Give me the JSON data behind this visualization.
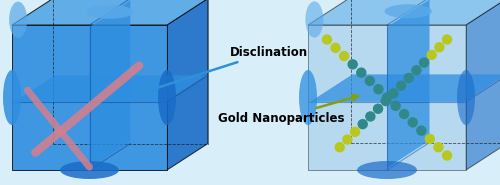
{
  "figsize": [
    5.0,
    1.85
  ],
  "dpi": 100,
  "bg_color": "#d8eef8",
  "blue_dark": "#1050a0",
  "blue_mid": "#1a6cc8",
  "blue_bright": "#2e8ee0",
  "blue_light": "#5aaae8",
  "blue_pale": "#90c0e8",
  "blue_transparent": "#b0d4f0",
  "pink": "#d08090",
  "nano_bright": "#b8c820",
  "nano_teal": "#308888",
  "black": "#111111",
  "arrow_blue": "#3090d8",
  "arrow_green": "#80a010",
  "text_label1": "Disclination",
  "text_label2": "Gold Nanoparticles",
  "label_fontsize": 8.5
}
